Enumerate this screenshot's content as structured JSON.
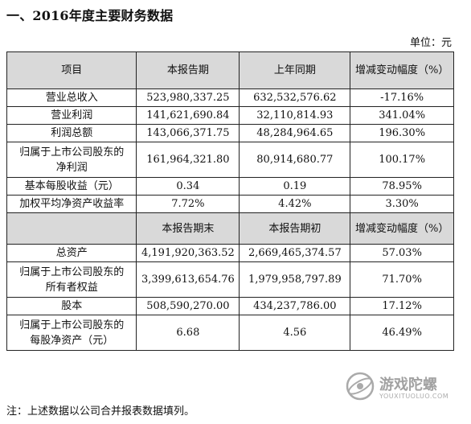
{
  "heading": "一、2016年度主要财务数据",
  "unit": "单位：元",
  "header1": [
    "项目",
    "本报告期",
    "上年同期",
    "增减变动幅度（%）"
  ],
  "rows1": [
    {
      "item": "营业总收入",
      "cur": "523,980,337.25",
      "prev": "632,532,576.62",
      "chg": "-17.16%"
    },
    {
      "item": "营业利润",
      "cur": "141,621,690.84",
      "prev": "32,110,814.93",
      "chg": "341.04%"
    },
    {
      "item": "利润总额",
      "cur": "143,066,371.75",
      "prev": "48,284,964.65",
      "chg": "196.30%"
    },
    {
      "item_l1": "归属于上市公司股东的",
      "item_l2": "净利润",
      "cur": "161,964,321.80",
      "prev": "80,914,680.77",
      "chg": "100.17%"
    },
    {
      "item": "基本每股收益（元）",
      "cur": "0.34",
      "prev": "0.19",
      "chg": "78.95%"
    },
    {
      "item": "加权平均净资产收益率",
      "cur": "7.72%",
      "prev": "4.42%",
      "chg": "3.30%"
    }
  ],
  "header2": [
    "本报告期末",
    "本报告期初",
    "增减变动幅度（%）"
  ],
  "rows2": [
    {
      "item": "总资产",
      "cur": "4,191,920,363.52",
      "prev": "2,669,465,374.57",
      "chg": "57.03%"
    },
    {
      "item_l1": "归属于上市公司股东的",
      "item_l2": "所有者权益",
      "cur": "3,399,613,654.76",
      "prev": "1,979,958,797.89",
      "chg": "71.70%"
    },
    {
      "item": "股本",
      "cur": "508,590,270.00",
      "prev": "434,237,786.00",
      "chg": "17.12%"
    },
    {
      "item_l1": "归属于上市公司股东的",
      "item_l2": "每股净资产（元）",
      "cur": "6.68",
      "prev": "4.56",
      "chg": "46.49%"
    }
  ],
  "note": "注：上述数据以公司合并报表数据填列。",
  "watermark": {
    "text": "游戏陀螺",
    "url": "YOUXITUOLUO.COM"
  }
}
